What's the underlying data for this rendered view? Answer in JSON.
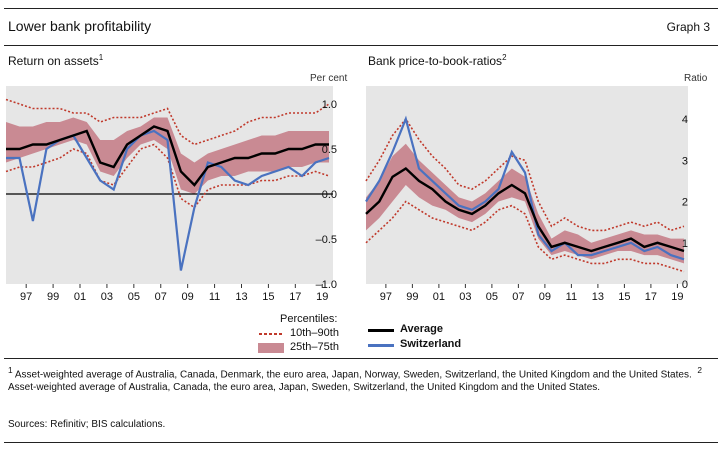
{
  "header": {
    "title": "Lower bank profitability",
    "graph_label": "Graph 3"
  },
  "panels": [
    {
      "title": "Return on assets",
      "footnote_mark": "1",
      "unit": "Per cent"
    },
    {
      "title": "Bank price-to-book-ratios",
      "footnote_mark": "2",
      "unit": "Ratio"
    }
  ],
  "legend": {
    "heading": "Percentiles:",
    "items": [
      {
        "label": "10th–90th",
        "color": "#c0392b"
      },
      {
        "label": "25th–75th",
        "color": "#c98a93"
      },
      {
        "label": "Average",
        "color": "#000000"
      },
      {
        "label": "Switzerland",
        "color": "#4a72c0"
      }
    ]
  },
  "footnotes": {
    "note1_mark": "1",
    "note1": "Asset-weighted average of Australia, Canada, Denmark, the euro area, Japan, Norway, Sweden, Switzerland, the United Kingdom and the United States.",
    "note2_mark": "2",
    "note2": "Asset-weighted average of Australia, Canada, the euro area, Japan, Sweden, Switzerland, the United Kingdom and the United States."
  },
  "sources": "Sources: Refinitiv; BIS calculations.",
  "chart_data": [
    {
      "type": "area",
      "title": "Return on assets",
      "ylabel": "Per cent",
      "xlim": [
        1995.5,
        2019.8
      ],
      "ylim": [
        -1.0,
        1.2
      ],
      "y_ticks": [
        1.0,
        0.5,
        0.0,
        -0.5,
        -1.0
      ],
      "y_tick_labels": [
        "1.0",
        "0.5",
        "0.0",
        "–0.5",
        "–1.0"
      ],
      "x_ticks": [
        1997,
        1999,
        2001,
        2003,
        2005,
        2007,
        2009,
        2011,
        2013,
        2015,
        2017,
        2019
      ],
      "x_tick_labels": [
        "97",
        "99",
        "01",
        "03",
        "05",
        "07",
        "09",
        "11",
        "13",
        "15",
        "17",
        "19"
      ],
      "x": [
        1995.5,
        1996.5,
        1997.5,
        1998.5,
        1999.5,
        2000.5,
        2001.5,
        2002.5,
        2003.5,
        2004.5,
        2005.5,
        2006.5,
        2007.5,
        2008.5,
        2009.5,
        2010.5,
        2011.5,
        2012.5,
        2013.5,
        2014.5,
        2015.5,
        2016.5,
        2017.5,
        2018.5,
        2019.5
      ],
      "series": [
        {
          "name": "10th",
          "values": [
            0.25,
            0.3,
            0.3,
            0.35,
            0.4,
            0.5,
            0.45,
            0.15,
            0.1,
            0.3,
            0.5,
            0.55,
            0.4,
            -0.05,
            -0.15,
            0.05,
            0.1,
            0.1,
            0.1,
            0.15,
            0.15,
            0.2,
            0.2,
            0.25,
            0.2
          ]
        },
        {
          "name": "25th",
          "values": [
            0.35,
            0.4,
            0.45,
            0.5,
            0.55,
            0.6,
            0.55,
            0.25,
            0.2,
            0.4,
            0.55,
            0.6,
            0.5,
            0.05,
            0.0,
            0.15,
            0.2,
            0.2,
            0.25,
            0.25,
            0.25,
            0.3,
            0.3,
            0.35,
            0.35
          ]
        },
        {
          "name": "Average",
          "values": [
            0.5,
            0.5,
            0.55,
            0.55,
            0.6,
            0.65,
            0.7,
            0.35,
            0.3,
            0.55,
            0.65,
            0.75,
            0.7,
            0.25,
            0.1,
            0.3,
            0.35,
            0.4,
            0.4,
            0.45,
            0.45,
            0.5,
            0.5,
            0.55,
            0.55
          ]
        },
        {
          "name": "75th",
          "values": [
            0.8,
            0.75,
            0.75,
            0.8,
            0.8,
            0.85,
            0.8,
            0.6,
            0.6,
            0.7,
            0.75,
            0.85,
            0.85,
            0.45,
            0.35,
            0.45,
            0.5,
            0.55,
            0.6,
            0.65,
            0.65,
            0.7,
            0.7,
            0.7,
            0.7
          ]
        },
        {
          "name": "90th",
          "values": [
            1.05,
            1.0,
            0.95,
            0.95,
            0.95,
            0.9,
            0.9,
            0.8,
            0.85,
            0.85,
            0.85,
            0.9,
            0.95,
            0.65,
            0.55,
            0.6,
            0.65,
            0.7,
            0.8,
            0.85,
            0.85,
            0.9,
            0.9,
            0.9,
            1.0
          ]
        },
        {
          "name": "Switzerland",
          "values": [
            0.4,
            0.4,
            -0.3,
            0.5,
            0.6,
            0.65,
            0.4,
            0.15,
            0.05,
            0.5,
            0.65,
            0.7,
            0.6,
            -0.85,
            -0.15,
            0.35,
            0.3,
            0.15,
            0.1,
            0.2,
            0.25,
            0.3,
            0.2,
            0.35,
            0.4
          ]
        }
      ]
    },
    {
      "type": "area",
      "title": "Bank price-to-book-ratios",
      "ylabel": "Ratio",
      "xlim": [
        1995.5,
        2019.8
      ],
      "ylim": [
        0,
        4.8
      ],
      "y_ticks": [
        4,
        3,
        2,
        1,
        0
      ],
      "y_tick_labels": [
        "4",
        "3",
        "2",
        "1",
        "0"
      ],
      "x_ticks": [
        1997,
        1999,
        2001,
        2003,
        2005,
        2007,
        2009,
        2011,
        2013,
        2015,
        2017,
        2019
      ],
      "x_tick_labels": [
        "97",
        "99",
        "01",
        "03",
        "05",
        "07",
        "09",
        "11",
        "13",
        "15",
        "17",
        "19"
      ],
      "x": [
        1995.5,
        1996.5,
        1997.5,
        1998.5,
        1999.5,
        2000.5,
        2001.5,
        2002.5,
        2003.5,
        2004.5,
        2005.5,
        2006.5,
        2007.5,
        2008.5,
        2009.5,
        2010.5,
        2011.5,
        2012.5,
        2013.5,
        2014.5,
        2015.5,
        2016.5,
        2017.5,
        2018.5,
        2019.5
      ],
      "series": [
        {
          "name": "10th",
          "values": [
            1.0,
            1.3,
            1.6,
            2.0,
            1.8,
            1.6,
            1.5,
            1.4,
            1.3,
            1.5,
            1.8,
            1.9,
            1.7,
            0.9,
            0.6,
            0.7,
            0.6,
            0.5,
            0.5,
            0.6,
            0.6,
            0.5,
            0.5,
            0.4,
            0.3
          ]
        },
        {
          "name": "25th",
          "values": [
            1.3,
            1.6,
            2.0,
            2.4,
            2.1,
            1.9,
            1.8,
            1.6,
            1.5,
            1.7,
            2.0,
            2.1,
            2.0,
            1.1,
            0.7,
            0.8,
            0.7,
            0.6,
            0.7,
            0.8,
            0.8,
            0.7,
            0.7,
            0.6,
            0.5
          ]
        },
        {
          "name": "Average",
          "values": [
            1.7,
            2.0,
            2.6,
            2.8,
            2.5,
            2.3,
            2.0,
            1.8,
            1.7,
            1.9,
            2.2,
            2.4,
            2.2,
            1.4,
            0.9,
            1.0,
            0.9,
            0.8,
            0.9,
            1.0,
            1.1,
            0.9,
            1.0,
            0.9,
            0.8
          ]
        },
        {
          "name": "75th",
          "values": [
            2.1,
            2.5,
            3.1,
            3.4,
            3.0,
            2.7,
            2.4,
            2.1,
            2.0,
            2.2,
            2.5,
            2.8,
            2.6,
            1.7,
            1.1,
            1.3,
            1.2,
            1.0,
            1.1,
            1.2,
            1.3,
            1.2,
            1.2,
            1.1,
            1.1
          ]
        },
        {
          "name": "90th",
          "values": [
            2.5,
            3.0,
            3.6,
            4.0,
            3.5,
            3.1,
            2.8,
            2.4,
            2.3,
            2.5,
            2.8,
            3.1,
            3.0,
            2.0,
            1.4,
            1.6,
            1.4,
            1.3,
            1.3,
            1.4,
            1.5,
            1.4,
            1.5,
            1.3,
            1.4
          ]
        },
        {
          "name": "Switzerland",
          "values": [
            2.0,
            2.5,
            3.2,
            4.0,
            2.8,
            2.5,
            2.2,
            1.9,
            1.8,
            2.0,
            2.3,
            3.2,
            2.7,
            1.2,
            0.8,
            1.0,
            0.7,
            0.7,
            0.8,
            0.9,
            1.0,
            0.8,
            0.9,
            0.7,
            0.6
          ]
        }
      ]
    }
  ]
}
